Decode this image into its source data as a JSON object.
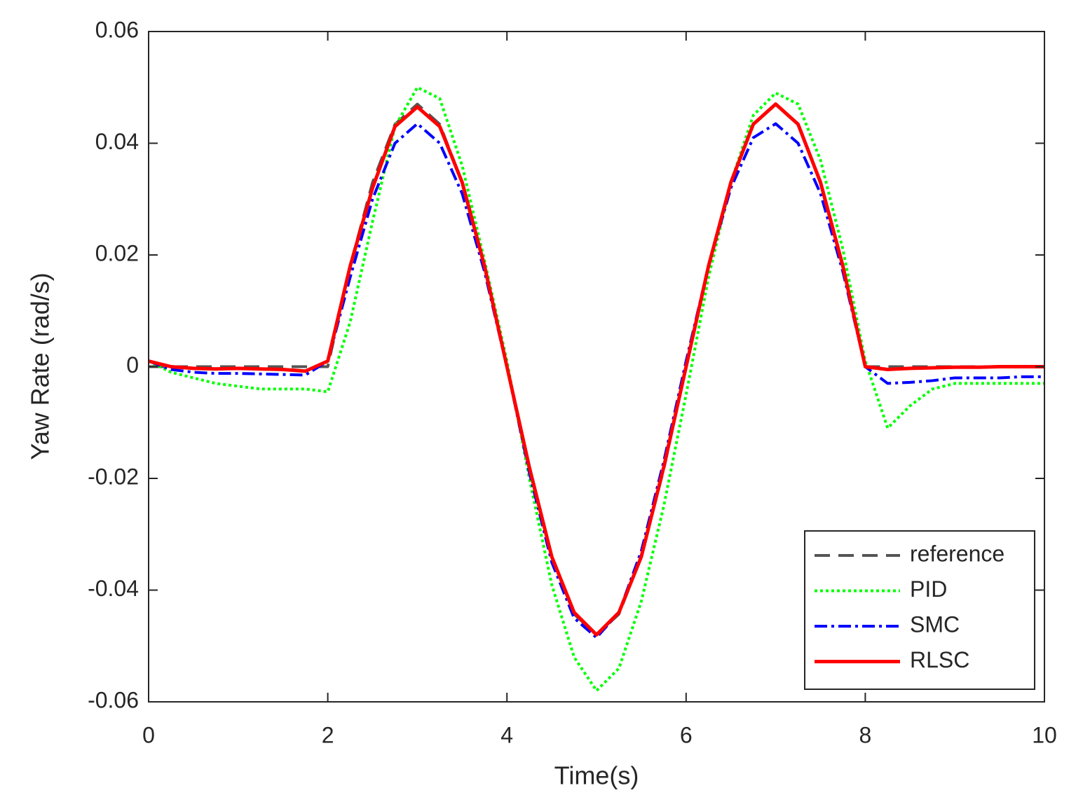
{
  "chart_data": {
    "type": "line",
    "xlabel": "Time(s)",
    "ylabel": "Yaw Rate (rad/s)",
    "x": [
      0,
      0.25,
      0.5,
      0.75,
      1,
      1.25,
      1.5,
      1.75,
      2,
      2.25,
      2.5,
      2.75,
      3,
      3.25,
      3.5,
      3.75,
      4,
      4.25,
      4.5,
      4.75,
      5,
      5.25,
      5.5,
      5.75,
      6,
      6.25,
      6.5,
      6.75,
      7,
      7.25,
      7.5,
      7.75,
      8,
      8.25,
      8.5,
      8.75,
      9,
      9.25,
      9.5,
      9.75,
      10
    ],
    "series": [
      {
        "name": "reference",
        "color": "#555555",
        "style": "dashed",
        "values": [
          0,
          0,
          0,
          0,
          0,
          0,
          0,
          0,
          0,
          0.018,
          0.033,
          0.0434,
          0.047,
          0.0434,
          0.033,
          0.018,
          0,
          -0.0184,
          -0.034,
          -0.0443,
          -0.048,
          -0.0443,
          -0.034,
          -0.0184,
          0,
          0.018,
          0.033,
          0.0434,
          0.047,
          0.0434,
          0.033,
          0.018,
          0,
          0,
          0,
          0,
          0,
          0,
          0,
          0,
          0
        ]
      },
      {
        "name": "PID",
        "color": "#00ff00",
        "style": "dotted",
        "values": [
          0.001,
          -0.001,
          -0.002,
          -0.003,
          -0.0035,
          -0.004,
          -0.004,
          -0.004,
          -0.0045,
          0.008,
          0.026,
          0.043,
          0.05,
          0.048,
          0.036,
          0.019,
          0.001,
          -0.02,
          -0.039,
          -0.052,
          -0.058,
          -0.054,
          -0.042,
          -0.025,
          -0.005,
          0.016,
          0.033,
          0.045,
          0.049,
          0.047,
          0.037,
          0.021,
          0.001,
          -0.011,
          -0.007,
          -0.004,
          -0.003,
          -0.003,
          -0.003,
          -0.003,
          -0.003
        ]
      },
      {
        "name": "SMC",
        "color": "#0000ff",
        "style": "dashdot",
        "values": [
          0.001,
          -0.0005,
          -0.001,
          -0.0012,
          -0.0012,
          -0.0013,
          -0.0014,
          -0.0015,
          0.001,
          0.016,
          0.03,
          0.04,
          0.0435,
          0.04,
          0.031,
          0.017,
          0,
          -0.019,
          -0.035,
          -0.045,
          -0.0485,
          -0.044,
          -0.033,
          -0.017,
          0.001,
          0.018,
          0.032,
          0.041,
          0.0435,
          0.04,
          0.031,
          0.017,
          0,
          -0.003,
          -0.0028,
          -0.0025,
          -0.002,
          -0.002,
          -0.002,
          -0.0018,
          -0.0018
        ]
      },
      {
        "name": "RLSC",
        "color": "#ff0000",
        "style": "solid",
        "values": [
          0.001,
          0,
          -0.0003,
          -0.0004,
          -0.0003,
          -0.0004,
          -0.0005,
          -0.0008,
          0.001,
          0.018,
          0.032,
          0.043,
          0.0465,
          0.043,
          0.033,
          0.018,
          0,
          -0.018,
          -0.034,
          -0.044,
          -0.048,
          -0.044,
          -0.034,
          -0.018,
          0,
          0.018,
          0.033,
          0.0434,
          0.047,
          0.0434,
          0.033,
          0.018,
          0,
          -0.0005,
          -0.0003,
          -0.0002,
          -0.0001,
          -0.0001,
          0,
          0,
          0
        ]
      }
    ],
    "xlim": [
      0,
      10
    ],
    "xticks": [
      0,
      2,
      4,
      6,
      8,
      10
    ],
    "ylim": [
      -0.06,
      0.06
    ],
    "yticks": [
      -0.06,
      -0.04,
      -0.02,
      0,
      0.02,
      0.04,
      0.06
    ],
    "grid": false,
    "legend": "lower right"
  }
}
